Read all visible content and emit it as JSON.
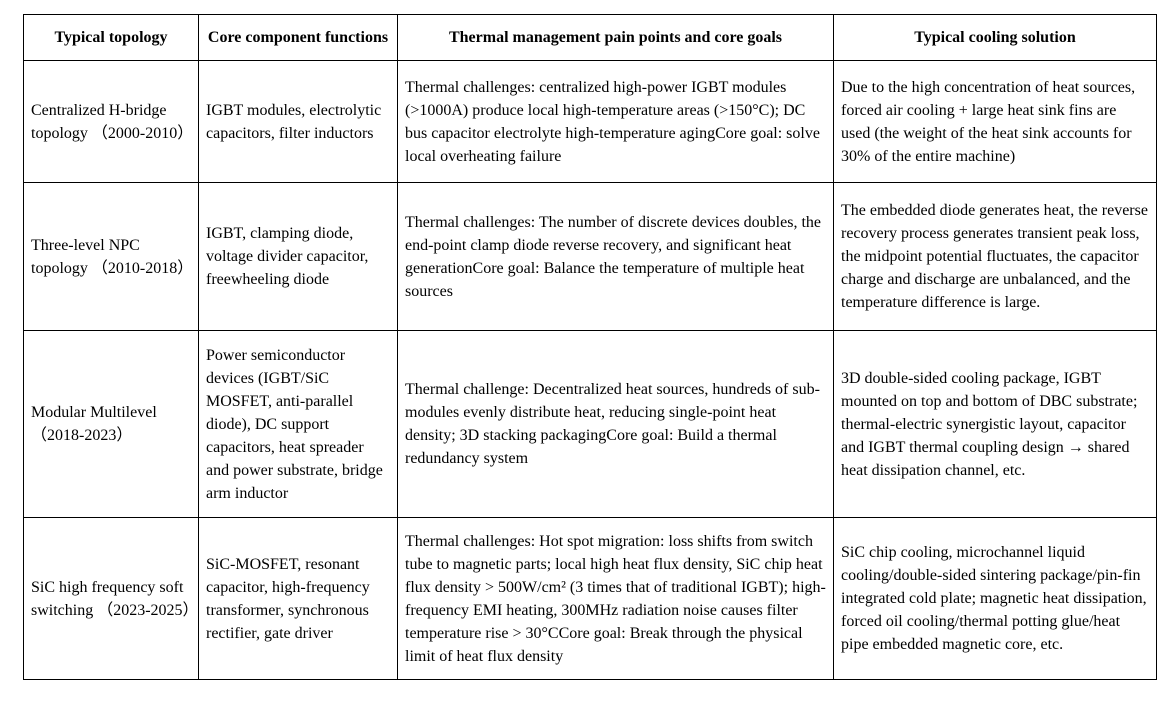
{
  "colors": {
    "background": "#ffffff",
    "border": "#000000",
    "text": "#000000"
  },
  "table": {
    "headers": [
      "Typical topology",
      "Core component functions",
      "Thermal management pain points and core goals",
      "Typical cooling solution"
    ],
    "rows": [
      {
        "topology": "Centralized H-bridge topology （2000-2010）",
        "components": "IGBT modules, electrolytic capacitors, filter inductors",
        "pain_points": "Thermal challenges: centralized high-power IGBT modules (>1000A) produce local high-temperature areas (>150°C); DC bus capacitor electrolyte high-temperature agingCore goal: solve local overheating failure",
        "cooling_solution": "Due to the high concentration of heat sources, forced air cooling + large heat sink fins are used (the weight of the heat sink accounts for 30% of the entire machine)"
      },
      {
        "topology": "Three-level NPC topology （2010-2018）",
        "components": "IGBT, clamping diode, voltage divider capacitor, freewheeling diode",
        "pain_points": "Thermal challenges: The number of discrete devices doubles, the end-point clamp diode reverse recovery, and significant heat generationCore goal: Balance the temperature of multiple heat sources",
        "cooling_solution": "The embedded diode generates heat, the reverse recovery process generates transient peak loss, the midpoint potential fluctuates, the capacitor charge and discharge are unbalanced, and the temperature difference is large."
      },
      {
        "topology": "Modular Multilevel （2018-2023）",
        "components": "Power semiconductor devices (IGBT/SiC MOSFET, anti-parallel diode), DC support capacitors, heat spreader and power substrate, bridge arm inductor",
        "pain_points": "Thermal challenge: Decentralized heat sources, hundreds of sub-modules evenly distribute heat, reducing single-point heat density; 3D stacking packagingCore goal: Build a thermal redundancy system",
        "cooling_solution": "3D double-sided cooling package, IGBT mounted on top and bottom of DBC substrate; thermal-electric synergistic layout, capacitor and IGBT thermal coupling design → shared heat dissipation channel, etc."
      },
      {
        "topology": "SiC high frequency soft switching （2023-2025）",
        "components": "SiC-MOSFET, resonant capacitor, high-frequency transformer, synchronous rectifier, gate driver",
        "pain_points": "Thermal challenges: Hot spot migration: loss shifts from switch tube to magnetic parts; local high heat flux density, SiC chip heat flux density > 500W/cm² (3 times that of traditional IGBT); high-frequency EMI heating, 300MHz radiation noise causes filter temperature rise > 30°CCore goal: Break through the physical limit of heat flux density",
        "cooling_solution": "SiC chip cooling, microchannel liquid cooling/double-sided sintering package/pin-fin integrated cold plate; magnetic heat dissipation, forced oil cooling/thermal potting glue/heat pipe embedded magnetic core, etc."
      }
    ]
  }
}
